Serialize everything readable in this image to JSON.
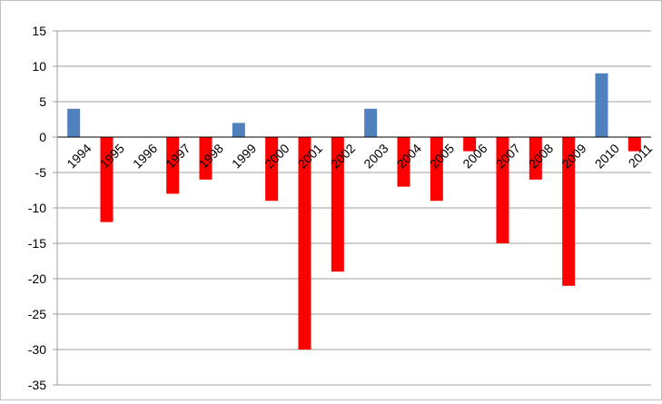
{
  "chart_data": {
    "type": "bar",
    "categories": [
      "1994",
      "1995",
      "1996",
      "1997",
      "1998",
      "1999",
      "2000",
      "2001",
      "2002",
      "2003",
      "2004",
      "2005",
      "2006",
      "2007",
      "2008",
      "2009",
      "2010",
      "2011"
    ],
    "series": [
      {
        "values": [
          4,
          -12,
          0,
          -8,
          -6,
          2,
          -9,
          -30,
          -19,
          4,
          -7,
          -9,
          -2,
          -15,
          -6,
          -21,
          9,
          -2
        ]
      }
    ],
    "ylim": [
      -35,
      15
    ],
    "yticks": [
      15,
      10,
      5,
      0,
      -5,
      -10,
      -15,
      -20,
      -25,
      -30,
      -35
    ],
    "grid": true,
    "legend": "none",
    "colors": {
      "positive": "#4f81bd",
      "negative": "#ff0000",
      "gridline": "#9f9f9f",
      "axis": "#000000"
    }
  }
}
